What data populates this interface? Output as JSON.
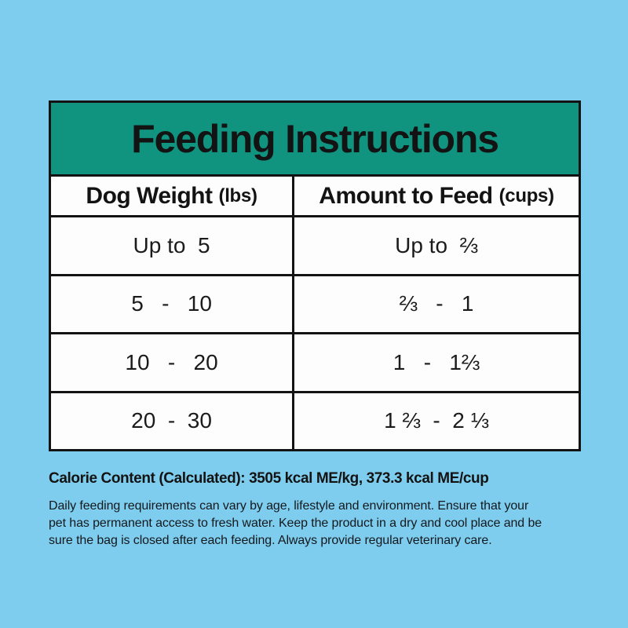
{
  "theme": {
    "background": "#7ecdee",
    "title_band": "#109480",
    "border_ink": "#131313",
    "cell_background": "#fdfdfd"
  },
  "table": {
    "title": "Feeding Instructions",
    "columns": [
      {
        "label": "Dog Weight",
        "unit": "(lbs)"
      },
      {
        "label": "Amount to Feed",
        "unit": "(cups)"
      }
    ],
    "rows": [
      {
        "weight": "Up to  5",
        "amount": "Up to  ⅔"
      },
      {
        "weight": "5   -   10",
        "amount": "⅔   -   1"
      },
      {
        "weight": "10   -   20",
        "amount": "1   -   1⅔"
      },
      {
        "weight": "20  -  30",
        "amount": "1 ⅔  -  2 ⅓"
      }
    ]
  },
  "footer": {
    "calorie_line": "Calorie Content (Calculated): 3505 kcal ME/kg, 373.3 kcal ME/cup",
    "note_lines": [
      "Daily feeding requirements can vary by age, lifestyle and environment. Ensure that your",
      "pet has permanent access to fresh water. Keep the product in a dry and cool place and be",
      "sure the bag is closed after each feeding. Always provide regular veterinary care."
    ]
  }
}
